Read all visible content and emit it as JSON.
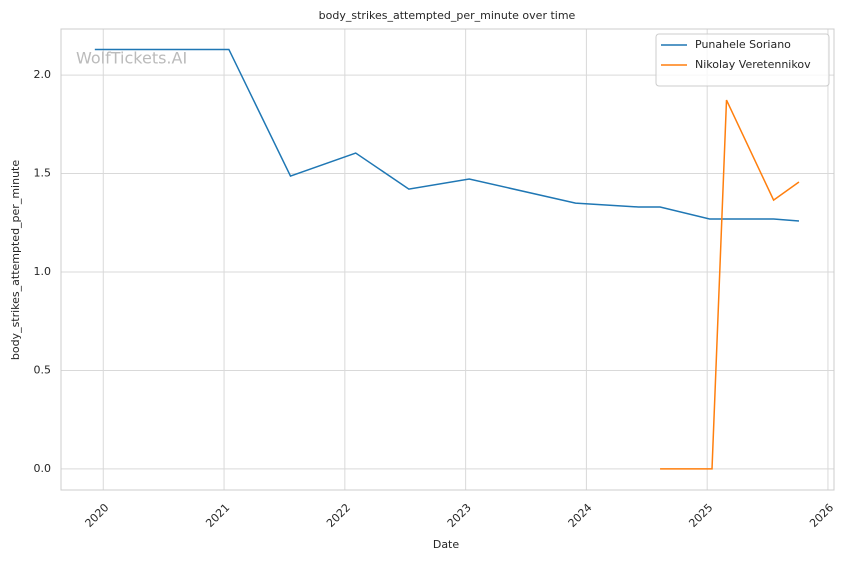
{
  "chart_data": {
    "type": "line",
    "title": "body_strikes_attempted_per_minute over time",
    "xlabel": "Date",
    "ylabel": "body_strikes_attempted_per_minute",
    "watermark": "WolfTickets.AI",
    "xlim": [
      2019.65,
      2026.05
    ],
    "xticks": [
      2020,
      2021,
      2022,
      2023,
      2024,
      2025,
      2026
    ],
    "ylim": [
      -0.107,
      2.234
    ],
    "yticks": [
      {
        "value": 0,
        "label": "0.0"
      },
      0.5,
      {
        "value": 1,
        "label": "1.0"
      },
      1.5,
      {
        "value": 2,
        "label": "2.0"
      }
    ],
    "grid": true,
    "legend": "upper right",
    "series": [
      {
        "name": "Punahele Soriano",
        "color": "#1f77b4",
        "x": [
          2019.93,
          2021.04,
          2021.55,
          2022.09,
          2022.53,
          2023.03,
          2023.91,
          2024.43,
          2024.61,
          2025.02,
          2025.55,
          2025.76
        ],
        "values": [
          2.13,
          2.13,
          1.487,
          1.604,
          1.421,
          1.472,
          1.35,
          1.33,
          1.33,
          1.269,
          1.269,
          1.259
        ]
      },
      {
        "name": "Nikolay Veretennikov",
        "color": "#ff7f0e",
        "x": [
          2024.61,
          2025.04,
          2025.16,
          2025.55,
          2025.76
        ],
        "values": [
          0,
          0,
          1.873,
          1.365,
          1.457
        ]
      }
    ]
  }
}
